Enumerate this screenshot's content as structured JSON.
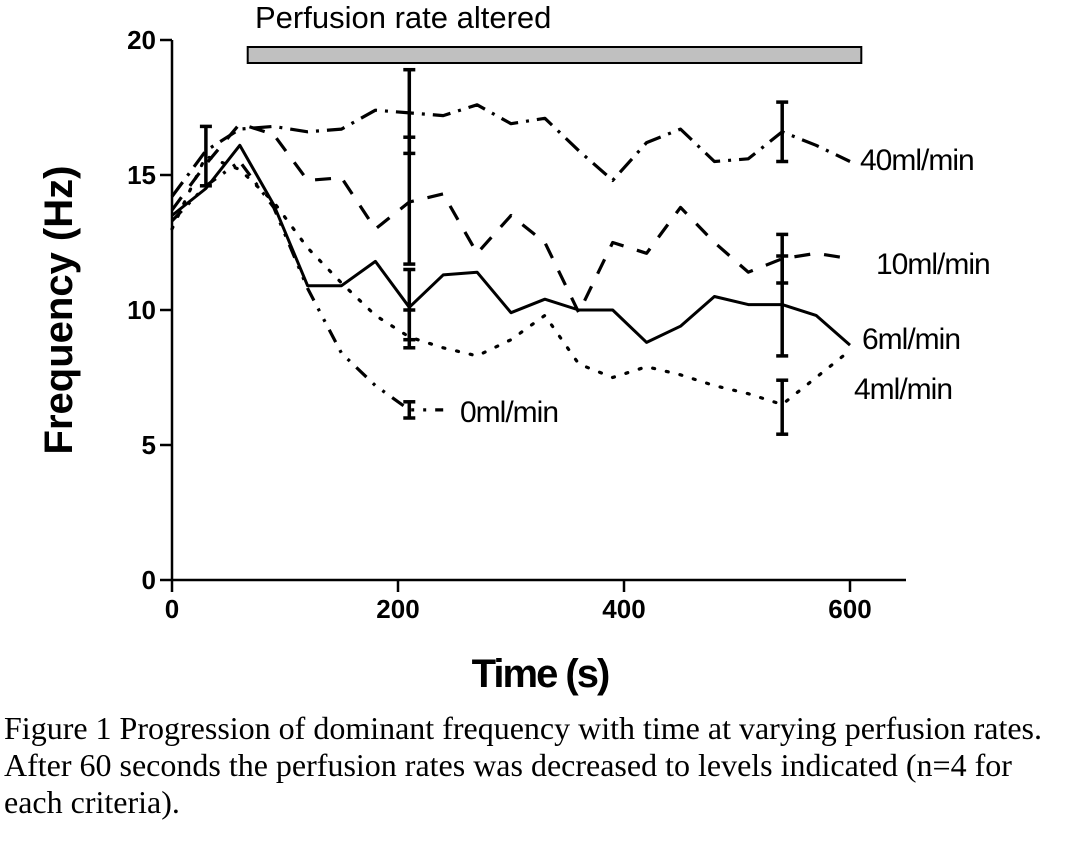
{
  "chart_data": {
    "type": "line",
    "title": "",
    "xlabel": "Time (s)",
    "ylabel": "Frequency (Hz)",
    "xlim": [
      0,
      650
    ],
    "ylim": [
      0,
      20
    ],
    "x_ticks": [
      0,
      200,
      400,
      600
    ],
    "y_ticks": [
      0,
      5,
      10,
      15,
      20
    ],
    "grid": false,
    "legend": "inline labels at line ends",
    "annotation": {
      "text": "Perfusion rate altered",
      "x_start": 67,
      "x_end": 610
    },
    "series": [
      {
        "name": "40ml/min",
        "style": "dash-dot",
        "x": [
          0,
          30,
          60,
          90,
          120,
          150,
          180,
          210,
          240,
          270,
          300,
          330,
          360,
          390,
          420,
          450,
          480,
          510,
          540,
          570,
          600
        ],
        "y": [
          14.2,
          15.9,
          16.7,
          16.8,
          16.6,
          16.7,
          17.4,
          17.3,
          17.2,
          17.6,
          16.9,
          17.1,
          15.9,
          14.8,
          16.2,
          16.7,
          15.5,
          15.6,
          16.6,
          16.1,
          15.5
        ],
        "error_bars": [
          {
            "x": 30,
            "lo": 14.6,
            "hi": 16.8
          },
          {
            "x": 210,
            "lo": 15.8,
            "hi": 18.9
          },
          {
            "x": 540,
            "lo": 15.5,
            "hi": 17.7
          }
        ]
      },
      {
        "name": "10ml/min",
        "style": "dashed",
        "x": [
          0,
          30,
          60,
          90,
          120,
          150,
          180,
          210,
          240,
          270,
          300,
          330,
          360,
          390,
          420,
          450,
          480,
          510,
          540,
          570,
          600
        ],
        "y": [
          13.7,
          15.4,
          16.9,
          16.5,
          14.8,
          14.9,
          13.0,
          14.0,
          14.3,
          12.1,
          13.5,
          12.5,
          9.9,
          12.5,
          12.1,
          13.8,
          12.5,
          11.4,
          11.9,
          12.1,
          11.9
        ],
        "error_bars": [
          {
            "x": 210,
            "lo": 11.7,
            "hi": 16.4
          },
          {
            "x": 540,
            "lo": 11.0,
            "hi": 12.8
          }
        ]
      },
      {
        "name": "6ml/min",
        "style": "solid",
        "x": [
          0,
          30,
          60,
          90,
          120,
          150,
          180,
          210,
          240,
          270,
          300,
          330,
          360,
          390,
          420,
          450,
          480,
          510,
          540,
          570,
          600
        ],
        "y": [
          13.5,
          14.5,
          16.1,
          13.9,
          10.9,
          10.9,
          11.8,
          10.1,
          11.3,
          11.4,
          9.9,
          10.4,
          10.0,
          10.0,
          8.8,
          9.4,
          10.5,
          10.2,
          10.2,
          9.8,
          8.7
        ],
        "error_bars": [
          {
            "x": 210,
            "lo": 8.6,
            "hi": 11.5
          },
          {
            "x": 540,
            "lo": 8.3,
            "hi": 12.0
          }
        ]
      },
      {
        "name": "4ml/min",
        "style": "dotted",
        "x": [
          0,
          30,
          60,
          90,
          120,
          150,
          180,
          210,
          240,
          270,
          300,
          330,
          360,
          390,
          420,
          450,
          480,
          510,
          540,
          570,
          600
        ],
        "y": [
          13.0,
          15.7,
          15.2,
          14.0,
          12.3,
          11.0,
          9.8,
          9.0,
          8.6,
          8.3,
          8.9,
          9.8,
          8.0,
          7.5,
          7.9,
          7.6,
          7.2,
          6.9,
          6.5,
          7.5,
          8.5
        ],
        "error_bars": [
          {
            "x": 210,
            "lo": 8.9,
            "hi": 10.0
          },
          {
            "x": 540,
            "lo": 5.4,
            "hi": 7.4
          }
        ]
      },
      {
        "name": "0ml/min",
        "style": "dash-dot-dot",
        "x": [
          0,
          30,
          60,
          90,
          120,
          150,
          180,
          210,
          240
        ],
        "y": [
          13.3,
          14.6,
          15.5,
          13.8,
          10.8,
          8.4,
          7.2,
          6.3,
          6.3
        ],
        "error_bars": [
          {
            "x": 210,
            "lo": 6.0,
            "hi": 6.6
          }
        ]
      }
    ]
  },
  "caption": "Figure 1 Progression of dominant frequency with time at varying perfusion rates. After 60 seconds the perfusion rates was decreased to levels indicated (n=4 for each criteria)."
}
